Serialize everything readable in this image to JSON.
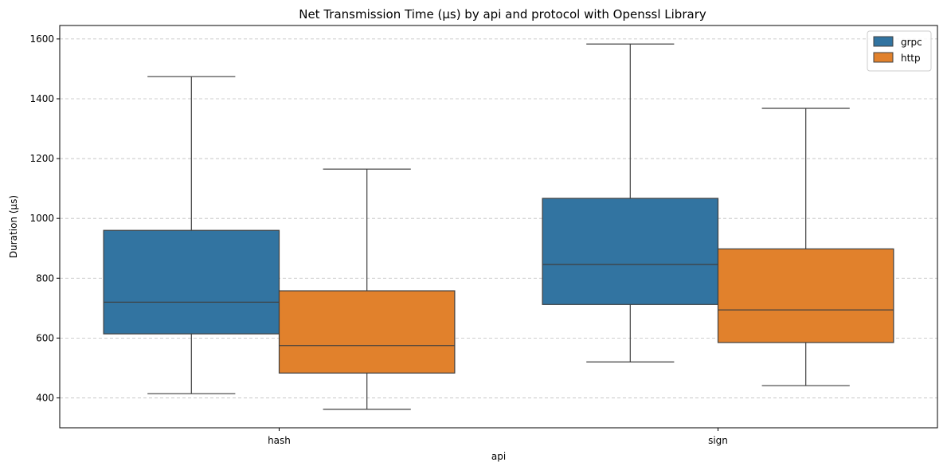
{
  "chart_data": {
    "type": "box",
    "title": "Net Transmission Time (µs) by api and protocol with Openssl Library",
    "xlabel": "api",
    "ylabel": "Duration (µs)",
    "categories": [
      "hash",
      "sign"
    ],
    "ylim": [
      300,
      1645
    ],
    "yticks": [
      400,
      600,
      800,
      1000,
      1200,
      1400,
      1600
    ],
    "grid": "y-dashed",
    "legend_position": "top-right",
    "series": [
      {
        "name": "grpc",
        "color": "#3274a1",
        "boxes": [
          {
            "min": 414,
            "q1": 614,
            "median": 720,
            "q3": 960,
            "max": 1474
          },
          {
            "min": 520,
            "q1": 712,
            "median": 846,
            "q3": 1067,
            "max": 1583
          }
        ]
      },
      {
        "name": "http",
        "color": "#e1812c",
        "boxes": [
          {
            "min": 362,
            "q1": 483,
            "median": 575,
            "q3": 758,
            "max": 1165
          },
          {
            "min": 441,
            "q1": 585,
            "median": 694,
            "q3": 898,
            "max": 1368
          }
        ]
      }
    ]
  }
}
